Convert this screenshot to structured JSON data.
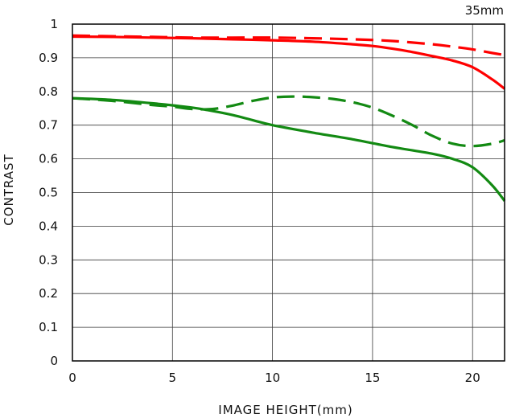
{
  "chart_data": {
    "type": "line",
    "title": "35mm",
    "xlabel": "IMAGE HEIGHT(mm)",
    "ylabel": "CONTRAST",
    "xlim": [
      0,
      21.6
    ],
    "ylim": [
      0,
      1
    ],
    "xticks": [
      0,
      5,
      10,
      15,
      20
    ],
    "xtick_labels": [
      "0",
      "5",
      "10",
      "15",
      "20"
    ],
    "yticks": [
      0,
      0.1,
      0.2,
      0.3,
      0.4,
      0.5,
      0.6,
      0.7,
      0.8,
      0.9,
      1
    ],
    "ytick_labels": [
      "0",
      "0.1",
      "0.2",
      "0.3",
      "0.4",
      "0.5",
      "0.6",
      "0.7",
      "0.8",
      "0.9",
      "1"
    ],
    "grid": true,
    "legend": "none",
    "series": [
      {
        "color": "#ff0000",
        "style": "solid",
        "x": [
          0,
          2,
          4,
          6,
          8,
          10,
          12,
          14,
          15,
          16,
          17,
          18,
          19,
          20,
          21,
          21.6
        ],
        "y": [
          0.963,
          0.962,
          0.96,
          0.958,
          0.955,
          0.952,
          0.948,
          0.94,
          0.935,
          0.927,
          0.917,
          0.905,
          0.892,
          0.872,
          0.835,
          0.808
        ]
      },
      {
        "color": "#ff0000",
        "style": "dashed",
        "x": [
          0,
          2,
          4,
          6,
          8,
          10,
          12,
          14,
          16,
          18,
          19,
          20,
          21,
          21.6
        ],
        "y": [
          0.966,
          0.964,
          0.962,
          0.96,
          0.96,
          0.96,
          0.958,
          0.955,
          0.95,
          0.94,
          0.933,
          0.925,
          0.914,
          0.908
        ]
      },
      {
        "color": "#138a13",
        "style": "solid",
        "x": [
          0,
          2,
          4,
          6,
          7,
          8,
          9,
          10,
          12,
          14,
          16,
          18,
          19,
          20,
          21,
          21.6
        ],
        "y": [
          0.78,
          0.775,
          0.765,
          0.752,
          0.742,
          0.73,
          0.715,
          0.7,
          0.678,
          0.658,
          0.635,
          0.615,
          0.6,
          0.575,
          0.52,
          0.475
        ]
      },
      {
        "color": "#138a13",
        "style": "dashed",
        "x": [
          0,
          2,
          4,
          5,
          6,
          7,
          8,
          9,
          10,
          11,
          12,
          13,
          14,
          15,
          16,
          17,
          18,
          19,
          20,
          21,
          21.6
        ],
        "y": [
          0.78,
          0.772,
          0.76,
          0.755,
          0.748,
          0.748,
          0.758,
          0.772,
          0.782,
          0.785,
          0.783,
          0.778,
          0.768,
          0.752,
          0.728,
          0.7,
          0.668,
          0.645,
          0.638,
          0.645,
          0.655
        ]
      }
    ]
  }
}
